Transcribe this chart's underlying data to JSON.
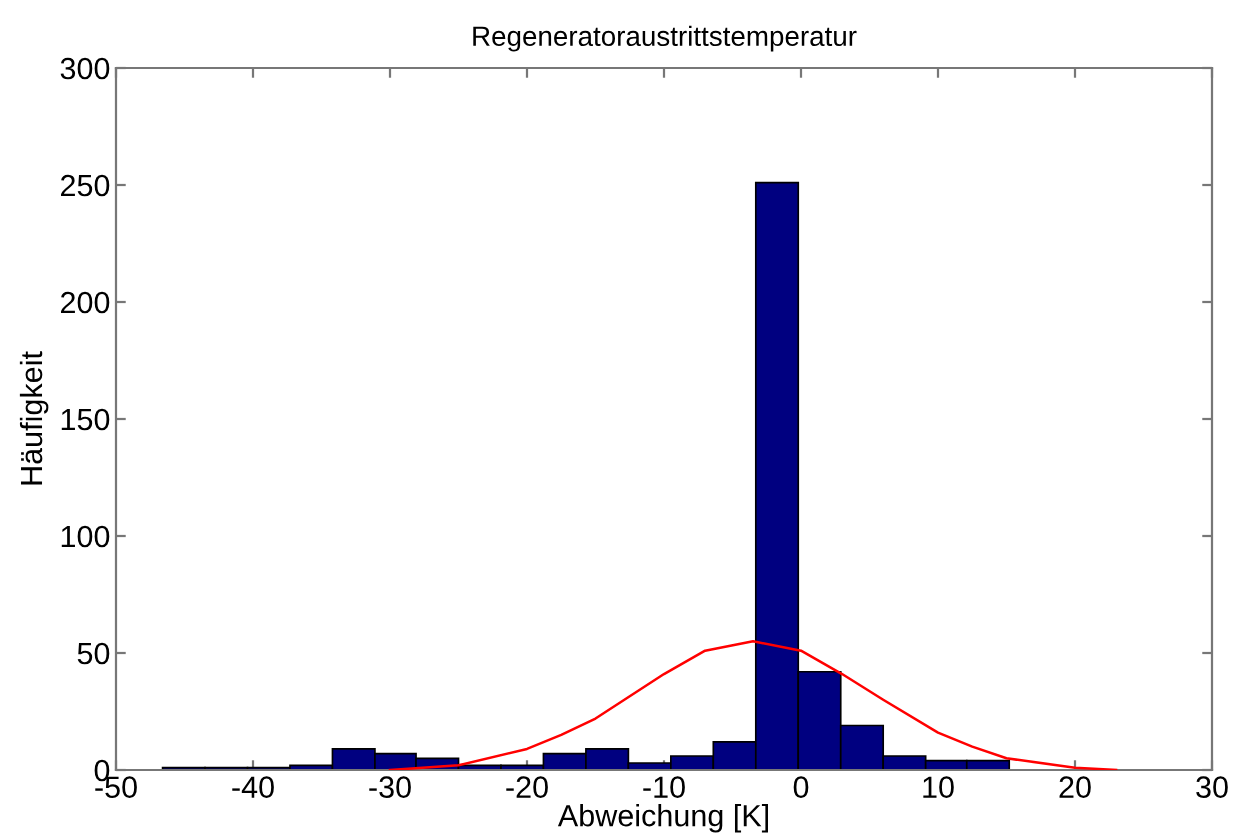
{
  "chart_data": {
    "type": "histogram",
    "title": "Regeneratoraustrittstemperatur",
    "xlabel": "Abweichung [K]",
    "ylabel": "Häufigkeit",
    "xlim": [
      -50,
      30
    ],
    "xticks": [
      -50,
      -40,
      -30,
      -20,
      -10,
      0,
      10,
      20,
      30
    ],
    "ylim": [
      0,
      300
    ],
    "yticks": [
      0,
      50,
      100,
      150,
      200,
      250,
      300
    ],
    "series": [
      {
        "color": "#000080",
        "bins": [
          -46.6,
          -43.5,
          -40.4,
          -37.3,
          -34.2,
          -31.1,
          -28.1,
          -25.0,
          -21.9,
          -18.8,
          -15.7,
          -12.6,
          -9.5,
          -6.4,
          -3.3,
          -0.2,
          2.9,
          6.0,
          9.1,
          12.1,
          15.2
        ],
        "values": [
          1,
          1,
          1,
          2,
          9,
          7,
          5,
          2,
          2,
          7,
          9,
          3,
          6,
          12,
          251,
          42,
          19,
          6,
          4,
          4
        ]
      },
      {
        "type": "line",
        "color": "#ff0000",
        "x": [
          -30,
          -25,
          -20,
          -17.5,
          -15,
          -10,
          -7,
          -3.5,
          0,
          3,
          6,
          10,
          12.5,
          15,
          20,
          23
        ],
        "values": [
          0,
          2,
          9,
          15,
          22,
          41,
          51,
          55,
          51,
          41,
          30,
          16,
          10,
          5,
          1,
          0
        ]
      }
    ]
  }
}
